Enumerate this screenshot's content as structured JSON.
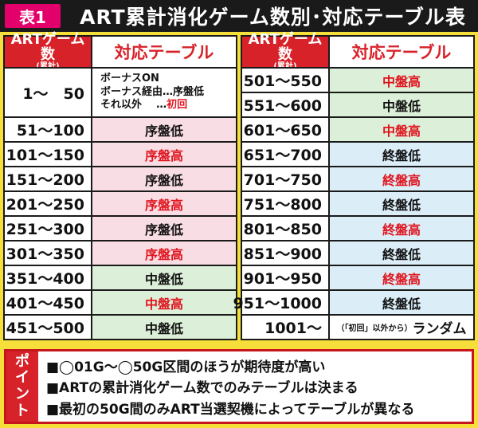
{
  "header": {
    "tag": "表1",
    "title": "ART累計消化ゲーム数別･対応テーブル表"
  },
  "columns": {
    "art_games_main": "ARTゲーム数",
    "art_games_sub": "(累計)",
    "table": "対応テーブル"
  },
  "left_rows": [
    {
      "range": "1～　50",
      "value": ""
    },
    {
      "range": "51～100",
      "value": "序盤低",
      "color": "pink",
      "red": false
    },
    {
      "range": "101～150",
      "value": "序盤高",
      "color": "pink",
      "red": true
    },
    {
      "range": "151～200",
      "value": "序盤低",
      "color": "pink",
      "red": false
    },
    {
      "range": "201～250",
      "value": "序盤高",
      "color": "pink",
      "red": true
    },
    {
      "range": "251～300",
      "value": "序盤低",
      "color": "pink",
      "red": false
    },
    {
      "range": "301～350",
      "value": "序盤高",
      "color": "pink",
      "red": true
    },
    {
      "range": "351～400",
      "value": "中盤低",
      "color": "green",
      "red": false
    },
    {
      "range": "401～450",
      "value": "中盤高",
      "color": "green",
      "red": true
    },
    {
      "range": "451～500",
      "value": "中盤低",
      "color": "green",
      "red": false
    }
  ],
  "first_row_detail": {
    "line1": "ボーナスON",
    "line2_a": "ボーナス経由",
    "line2_b": "…序盤低",
    "line3_a": "それ以外",
    "line3_b": "…",
    "line3_c": "初回"
  },
  "right_rows": [
    {
      "range": "501～550",
      "value": "中盤高",
      "color": "green",
      "red": true
    },
    {
      "range": "551～600",
      "value": "中盤低",
      "color": "green",
      "red": false
    },
    {
      "range": "601～650",
      "value": "中盤高",
      "color": "green",
      "red": true
    },
    {
      "range": "651～700",
      "value": "終盤低",
      "color": "blue",
      "red": false
    },
    {
      "range": "701～750",
      "value": "終盤高",
      "color": "blue",
      "red": true
    },
    {
      "range": "751～800",
      "value": "終盤低",
      "color": "blue",
      "red": false
    },
    {
      "range": "801～850",
      "value": "終盤高",
      "color": "blue",
      "red": true
    },
    {
      "range": "851～900",
      "value": "終盤低",
      "color": "blue",
      "red": false
    },
    {
      "range": "901～950",
      "value": "終盤高",
      "color": "blue",
      "red": true
    },
    {
      "range": "951～1000",
      "value": "終盤低",
      "color": "blue",
      "red": false
    },
    {
      "range": "1001～",
      "value": ""
    }
  ],
  "last_row_detail": {
    "small": "（「初回」以外から）",
    "big": "ランダム"
  },
  "point": {
    "label_chars": [
      "ポ",
      "イ",
      "ン",
      "ト"
    ],
    "items": [
      "■◯01G～◯50G区間のほうが期待度が高い",
      "■ARTの累計消化ゲーム数でのみテーブルは決まる",
      "■最初の50G間のみART当選契機によってテーブルが異なる"
    ]
  },
  "colors": {
    "background": "#f6df3a",
    "header_bg": "#1a1a1a",
    "tag_bg": "#e2006a",
    "header_cell_red": "#d8222a",
    "pink": "#f9dde4",
    "green": "#dcefd8",
    "blue": "#dbeef8",
    "red_text": "#e0151e"
  }
}
